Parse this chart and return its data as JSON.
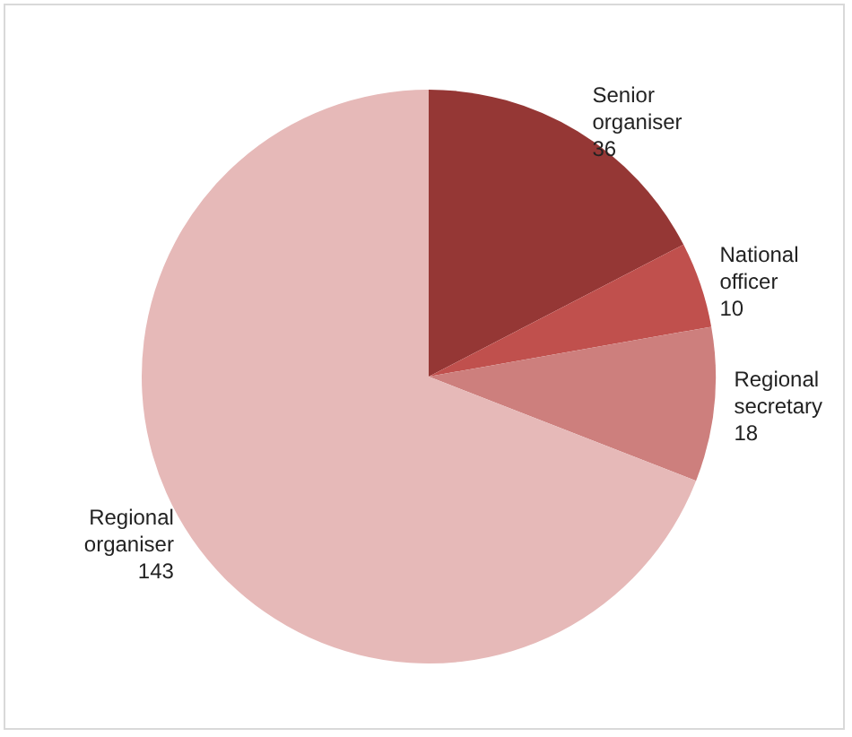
{
  "chart_data": {
    "type": "pie",
    "categories": [
      "Senior organiser",
      "National officer",
      "Regional secretary",
      "Regional organiser"
    ],
    "values": [
      36,
      10,
      18,
      143
    ],
    "colors": [
      "#953735",
      "#c0504d",
      "#cd7f7d",
      "#e6b9b8"
    ],
    "data_labels": true,
    "legend": false
  }
}
